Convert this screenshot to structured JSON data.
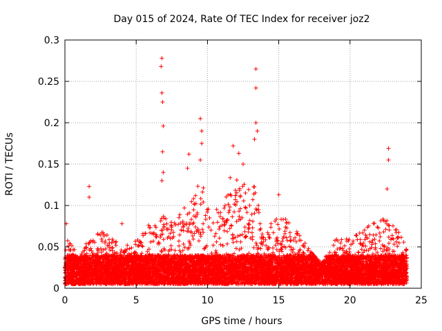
{
  "chart_data": {
    "type": "scatter",
    "title": "Day 015 of 2024, Rate Of TEC Index for receiver joz2",
    "xlabel": "GPS time / hours",
    "ylabel": "ROTI / TECUs",
    "xlim": [
      0,
      25
    ],
    "ylim": [
      0,
      0.3
    ],
    "x_ticks": [
      "0",
      "5",
      "10",
      "15",
      "20",
      "25"
    ],
    "y_ticks": [
      "0",
      "0.05",
      "0.1",
      "0.15",
      "0.2",
      "0.25",
      "0.3"
    ],
    "grid": true,
    "marker": "+",
    "color": "#ff0000",
    "series": [
      {
        "name": "ROTI",
        "baseline_min": 0.005,
        "dense_band_max": 0.04,
        "envelope": [
          {
            "x": 0.0,
            "y": 0.075
          },
          {
            "x": 0.3,
            "y": 0.06
          },
          {
            "x": 1.0,
            "y": 0.035
          },
          {
            "x": 1.6,
            "y": 0.06
          },
          {
            "x": 2.8,
            "y": 0.07
          },
          {
            "x": 4.0,
            "y": 0.05
          },
          {
            "x": 5.0,
            "y": 0.06
          },
          {
            "x": 6.0,
            "y": 0.08
          },
          {
            "x": 6.8,
            "y": 0.09
          },
          {
            "x": 7.5,
            "y": 0.08
          },
          {
            "x": 8.5,
            "y": 0.1
          },
          {
            "x": 9.5,
            "y": 0.13
          },
          {
            "x": 10.5,
            "y": 0.09
          },
          {
            "x": 12.0,
            "y": 0.15
          },
          {
            "x": 13.3,
            "y": 0.13
          },
          {
            "x": 14.0,
            "y": 0.07
          },
          {
            "x": 15.0,
            "y": 0.09
          },
          {
            "x": 16.0,
            "y": 0.08
          },
          {
            "x": 17.0,
            "y": 0.05
          },
          {
            "x": 18.0,
            "y": 0.03
          },
          {
            "x": 19.0,
            "y": 0.06
          },
          {
            "x": 20.0,
            "y": 0.06
          },
          {
            "x": 21.5,
            "y": 0.08
          },
          {
            "x": 22.7,
            "y": 0.09
          },
          {
            "x": 24.0,
            "y": 0.05
          }
        ],
        "spikes": [
          {
            "x": 0.1,
            "y": 0.078
          },
          {
            "x": 1.7,
            "y": 0.123
          },
          {
            "x": 1.7,
            "y": 0.11
          },
          {
            "x": 4.0,
            "y": 0.078
          },
          {
            "x": 6.8,
            "y": 0.278
          },
          {
            "x": 6.75,
            "y": 0.268
          },
          {
            "x": 6.8,
            "y": 0.236
          },
          {
            "x": 6.85,
            "y": 0.225
          },
          {
            "x": 6.9,
            "y": 0.196
          },
          {
            "x": 6.85,
            "y": 0.165
          },
          {
            "x": 6.9,
            "y": 0.14
          },
          {
            "x": 6.8,
            "y": 0.13
          },
          {
            "x": 8.7,
            "y": 0.162
          },
          {
            "x": 8.6,
            "y": 0.145
          },
          {
            "x": 9.5,
            "y": 0.205
          },
          {
            "x": 9.6,
            "y": 0.19
          },
          {
            "x": 9.6,
            "y": 0.175
          },
          {
            "x": 9.5,
            "y": 0.155
          },
          {
            "x": 11.8,
            "y": 0.172
          },
          {
            "x": 12.2,
            "y": 0.163
          },
          {
            "x": 12.5,
            "y": 0.15
          },
          {
            "x": 13.4,
            "y": 0.265
          },
          {
            "x": 13.4,
            "y": 0.242
          },
          {
            "x": 13.4,
            "y": 0.2
          },
          {
            "x": 13.5,
            "y": 0.19
          },
          {
            "x": 13.3,
            "y": 0.18
          },
          {
            "x": 15.0,
            "y": 0.113
          },
          {
            "x": 22.7,
            "y": 0.169
          },
          {
            "x": 22.7,
            "y": 0.155
          },
          {
            "x": 22.6,
            "y": 0.12
          }
        ]
      }
    ]
  }
}
